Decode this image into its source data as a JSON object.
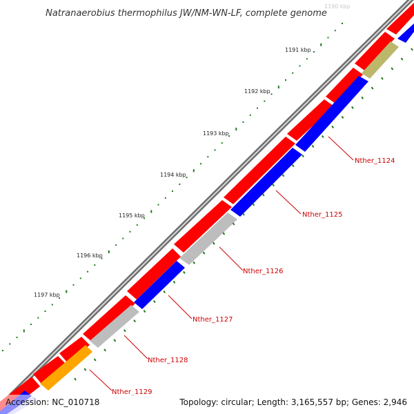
{
  "title": "Natranaerobius thermophilus JW/NM-WN-LF, complete genome",
  "footer": {
    "accession": "Accession: NC_010718",
    "summary": "Topology: circular; Length: 3,165,557 bp; Genes: 2,946"
  },
  "colors": {
    "backbone": "#808080",
    "forward_cds": "#ff0000",
    "reverse_cds": "#0000ff",
    "hypothetical": "#bdbdbd",
    "other_a": "#ffa500",
    "other_b": "#bdb76b",
    "gene_label": "#cc0000",
    "ruler_ticks": "#1a7a1a"
  },
  "ruler": {
    "ticks": [
      {
        "label": "1190 kbp",
        "faded": true
      },
      {
        "label": "1191 kbp"
      },
      {
        "label": "1192 kbp"
      },
      {
        "label": "1193 kbp"
      },
      {
        "label": "1194 kbp"
      },
      {
        "label": "1195 kbp"
      },
      {
        "label": "1196 kbp"
      },
      {
        "label": "1197 kbp"
      }
    ]
  },
  "gene_labels": [
    "Nther_1124",
    "Nther_1125",
    "Nther_1126",
    "Nther_1127",
    "Nther_1128",
    "Nther_1129"
  ]
}
